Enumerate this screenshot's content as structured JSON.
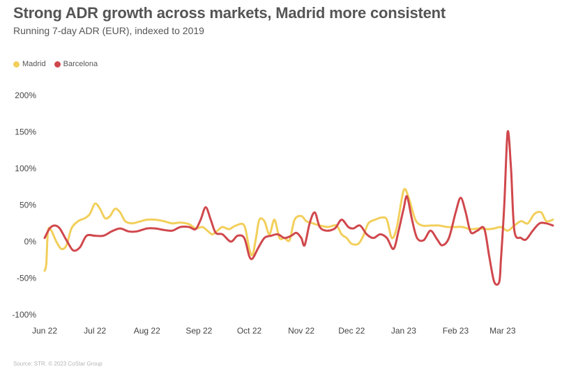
{
  "title": "Strong ADR growth across markets, Madrid more consistent",
  "subtitle": "Running 7-day ADR (EUR), indexed to 2019",
  "source": "Source: STR. © 2023 CoStar Group",
  "legend": [
    {
      "name": "Madrid",
      "color": "#f2cf5b"
    },
    {
      "name": "Barcelona",
      "color": "#d0474c"
    }
  ],
  "chart_data": {
    "type": "line",
    "x_domain": [
      "2022-06-01",
      "2023-03-31"
    ],
    "x_ticks": [
      {
        "date": "2022-06-01",
        "label": "Jun 22"
      },
      {
        "date": "2022-07-01",
        "label": "Jul 22"
      },
      {
        "date": "2022-08-01",
        "label": "Aug 22"
      },
      {
        "date": "2022-09-01",
        "label": "Sep 22"
      },
      {
        "date": "2022-10-01",
        "label": "Oct 22"
      },
      {
        "date": "2022-11-01",
        "label": "Nov 22"
      },
      {
        "date": "2022-12-01",
        "label": "Dec 22"
      },
      {
        "date": "2023-01-01",
        "label": "Jan 23"
      },
      {
        "date": "2023-02-01",
        "label": "Feb 23"
      },
      {
        "date": "2023-03-01",
        "label": "Mar 23"
      }
    ],
    "ylim": [
      -100,
      200
    ],
    "y_ticks": [
      {
        "value": 200,
        "label": "200%"
      },
      {
        "value": 150,
        "label": "150%"
      },
      {
        "value": 100,
        "label": "100%"
      },
      {
        "value": 50,
        "label": "50%"
      },
      {
        "value": 0,
        "label": "0%"
      },
      {
        "value": -50,
        "label": "-50%"
      },
      {
        "value": -100,
        "label": "-100%"
      }
    ],
    "grid": false,
    "legend_position": "top-left",
    "series": [
      {
        "name": "Madrid",
        "color": "#f2cf5b",
        "points": [
          [
            "2022-06-01",
            -40
          ],
          [
            "2022-06-02",
            -30
          ],
          [
            "2022-06-03",
            15
          ],
          [
            "2022-06-05",
            15
          ],
          [
            "2022-06-08",
            0
          ],
          [
            "2022-06-11",
            -10
          ],
          [
            "2022-06-14",
            -5
          ],
          [
            "2022-06-17",
            18
          ],
          [
            "2022-06-21",
            28
          ],
          [
            "2022-06-25",
            32
          ],
          [
            "2022-06-28",
            38
          ],
          [
            "2022-07-01",
            52
          ],
          [
            "2022-07-04",
            45
          ],
          [
            "2022-07-07",
            32
          ],
          [
            "2022-07-10",
            35
          ],
          [
            "2022-07-13",
            45
          ],
          [
            "2022-07-16",
            40
          ],
          [
            "2022-07-19",
            28
          ],
          [
            "2022-07-23",
            25
          ],
          [
            "2022-07-27",
            27
          ],
          [
            "2022-08-01",
            30
          ],
          [
            "2022-08-06",
            30
          ],
          [
            "2022-08-11",
            28
          ],
          [
            "2022-08-16",
            25
          ],
          [
            "2022-08-21",
            26
          ],
          [
            "2022-08-26",
            24
          ],
          [
            "2022-08-30",
            18
          ],
          [
            "2022-09-03",
            20
          ],
          [
            "2022-09-06",
            15
          ],
          [
            "2022-09-09",
            10
          ],
          [
            "2022-09-12",
            15
          ],
          [
            "2022-09-15",
            20
          ],
          [
            "2022-09-19",
            17
          ],
          [
            "2022-09-23",
            22
          ],
          [
            "2022-09-28",
            22
          ],
          [
            "2022-10-01",
            -10
          ],
          [
            "2022-10-03",
            -18
          ],
          [
            "2022-10-05",
            5
          ],
          [
            "2022-10-07",
            30
          ],
          [
            "2022-10-10",
            28
          ],
          [
            "2022-10-13",
            10
          ],
          [
            "2022-10-16",
            30
          ],
          [
            "2022-10-19",
            5
          ],
          [
            "2022-10-22",
            5
          ],
          [
            "2022-10-25",
            2
          ],
          [
            "2022-10-28",
            30
          ],
          [
            "2022-11-01",
            35
          ],
          [
            "2022-11-04",
            28
          ],
          [
            "2022-11-08",
            25
          ],
          [
            "2022-11-12",
            22
          ],
          [
            "2022-11-17",
            20
          ],
          [
            "2022-11-22",
            22
          ],
          [
            "2022-11-25",
            10
          ],
          [
            "2022-11-28",
            5
          ],
          [
            "2022-12-01",
            -3
          ],
          [
            "2022-12-05",
            -3
          ],
          [
            "2022-12-08",
            8
          ],
          [
            "2022-12-11",
            25
          ],
          [
            "2022-12-15",
            30
          ],
          [
            "2022-12-19",
            33
          ],
          [
            "2022-12-22",
            30
          ],
          [
            "2022-12-25",
            5
          ],
          [
            "2022-12-28",
            20
          ],
          [
            "2023-01-01",
            70
          ],
          [
            "2023-01-04",
            60
          ],
          [
            "2023-01-08",
            30
          ],
          [
            "2023-01-12",
            22
          ],
          [
            "2023-01-17",
            22
          ],
          [
            "2023-01-22",
            22
          ],
          [
            "2023-01-27",
            20
          ],
          [
            "2023-02-01",
            20
          ],
          [
            "2023-02-05",
            20
          ],
          [
            "2023-02-10",
            17
          ],
          [
            "2023-02-15",
            18
          ],
          [
            "2023-02-20",
            17
          ],
          [
            "2023-02-24",
            18
          ],
          [
            "2023-02-28",
            20
          ],
          [
            "2023-03-04",
            15
          ],
          [
            "2023-03-08",
            22
          ],
          [
            "2023-03-12",
            28
          ],
          [
            "2023-03-16",
            25
          ],
          [
            "2023-03-20",
            38
          ],
          [
            "2023-03-24",
            40
          ],
          [
            "2023-03-27",
            28
          ],
          [
            "2023-03-31",
            30
          ]
        ]
      },
      {
        "name": "Barcelona",
        "color": "#d0474c",
        "points": [
          [
            "2022-06-01",
            5
          ],
          [
            "2022-06-04",
            18
          ],
          [
            "2022-06-07",
            22
          ],
          [
            "2022-06-10",
            18
          ],
          [
            "2022-06-14",
            2
          ],
          [
            "2022-06-18",
            -12
          ],
          [
            "2022-06-22",
            -8
          ],
          [
            "2022-06-26",
            8
          ],
          [
            "2022-07-01",
            8
          ],
          [
            "2022-07-06",
            8
          ],
          [
            "2022-07-11",
            14
          ],
          [
            "2022-07-16",
            18
          ],
          [
            "2022-07-21",
            14
          ],
          [
            "2022-07-26",
            14
          ],
          [
            "2022-08-01",
            18
          ],
          [
            "2022-08-06",
            18
          ],
          [
            "2022-08-11",
            16
          ],
          [
            "2022-08-16",
            15
          ],
          [
            "2022-08-21",
            20
          ],
          [
            "2022-08-26",
            20
          ],
          [
            "2022-08-30",
            17
          ],
          [
            "2022-09-02",
            30
          ],
          [
            "2022-09-05",
            47
          ],
          [
            "2022-09-08",
            30
          ],
          [
            "2022-09-11",
            12
          ],
          [
            "2022-09-15",
            10
          ],
          [
            "2022-09-20",
            0
          ],
          [
            "2022-09-24",
            8
          ],
          [
            "2022-09-28",
            5
          ],
          [
            "2022-10-01",
            -20
          ],
          [
            "2022-10-03",
            -23
          ],
          [
            "2022-10-06",
            -10
          ],
          [
            "2022-10-10",
            5
          ],
          [
            "2022-10-14",
            8
          ],
          [
            "2022-10-18",
            10
          ],
          [
            "2022-10-22",
            5
          ],
          [
            "2022-10-26",
            8
          ],
          [
            "2022-10-29",
            12
          ],
          [
            "2022-11-01",
            5
          ],
          [
            "2022-11-03",
            -5
          ],
          [
            "2022-11-06",
            25
          ],
          [
            "2022-11-09",
            40
          ],
          [
            "2022-11-12",
            20
          ],
          [
            "2022-11-16",
            15
          ],
          [
            "2022-11-21",
            18
          ],
          [
            "2022-11-25",
            30
          ],
          [
            "2022-11-29",
            20
          ],
          [
            "2022-12-02",
            18
          ],
          [
            "2022-12-06",
            22
          ],
          [
            "2022-12-10",
            10
          ],
          [
            "2022-12-14",
            5
          ],
          [
            "2022-12-18",
            10
          ],
          [
            "2022-12-22",
            5
          ],
          [
            "2022-12-26",
            -10
          ],
          [
            "2022-12-29",
            15
          ],
          [
            "2023-01-01",
            45
          ],
          [
            "2023-01-03",
            62
          ],
          [
            "2023-01-06",
            30
          ],
          [
            "2023-01-09",
            5
          ],
          [
            "2023-01-13",
            2
          ],
          [
            "2023-01-17",
            15
          ],
          [
            "2023-01-21",
            3
          ],
          [
            "2023-01-24",
            -5
          ],
          [
            "2023-01-28",
            5
          ],
          [
            "2023-02-01",
            40
          ],
          [
            "2023-02-04",
            60
          ],
          [
            "2023-02-07",
            40
          ],
          [
            "2023-02-10",
            13
          ],
          [
            "2023-02-14",
            15
          ],
          [
            "2023-02-18",
            18
          ],
          [
            "2023-02-21",
            -20
          ],
          [
            "2023-02-24",
            -55
          ],
          [
            "2023-02-27",
            -55
          ],
          [
            "2023-02-28",
            -25
          ],
          [
            "2023-03-02",
            50
          ],
          [
            "2023-03-04",
            150
          ],
          [
            "2023-03-06",
            100
          ],
          [
            "2023-03-08",
            15
          ],
          [
            "2023-03-12",
            5
          ],
          [
            "2023-03-15",
            3
          ],
          [
            "2023-03-19",
            15
          ],
          [
            "2023-03-23",
            25
          ],
          [
            "2023-03-27",
            25
          ],
          [
            "2023-03-31",
            22
          ]
        ]
      }
    ]
  }
}
